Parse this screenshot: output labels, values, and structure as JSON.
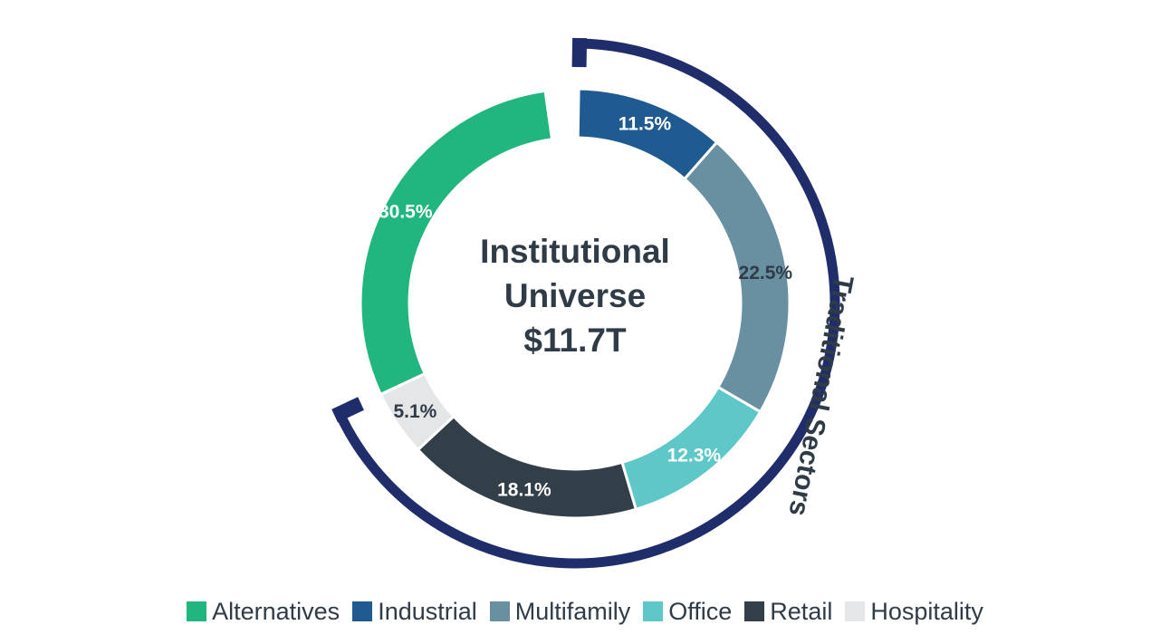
{
  "chart_data": {
    "type": "pie",
    "variant": "donut",
    "center_label": [
      "Institutional",
      "Universe",
      "$11.7T"
    ],
    "slices": [
      {
        "name": "Industrial",
        "value": 11.5,
        "label": "11.5%",
        "color": "#1f5a91"
      },
      {
        "name": "Multifamily",
        "value": 22.5,
        "label": "22.5%",
        "color": "#6890a1"
      },
      {
        "name": "Office",
        "value": 12.3,
        "label": "12.3%",
        "color": "#5ec7c8"
      },
      {
        "name": "Retail",
        "value": 18.1,
        "label": "18.1%",
        "color": "#333f48"
      },
      {
        "name": "Hospitality",
        "value": 5.1,
        "label": "5.1%",
        "color": "#e4e6e8"
      },
      {
        "name": "Alternatives",
        "value": 30.5,
        "label": "30.5%",
        "color": "#21b67d"
      }
    ],
    "bracket": {
      "label": "Traditional Sectors",
      "color": "#1f2d6b"
    },
    "legend": {
      "placement": "bottom",
      "items": [
        {
          "label": "Alternatives",
          "color": "#21b67d"
        },
        {
          "label": "Industrial",
          "color": "#1f5a91"
        },
        {
          "label": "Multifamily",
          "color": "#6890a1"
        },
        {
          "label": "Office",
          "color": "#5ec7c8"
        },
        {
          "label": "Retail",
          "color": "#333f48"
        },
        {
          "label": "Hospitality",
          "color": "#e4e6e8"
        }
      ]
    }
  }
}
